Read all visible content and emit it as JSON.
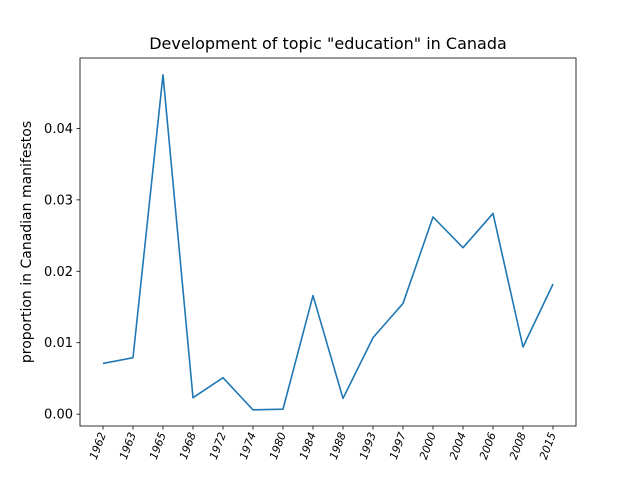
{
  "chart_data": {
    "type": "line",
    "title": "Development of topic \"education\" in Canada",
    "xlabel": "",
    "ylabel": "proportion in Canadian manifestos",
    "categories": [
      "1962",
      "1963",
      "1965",
      "1968",
      "1972",
      "1974",
      "1980",
      "1984",
      "1988",
      "1993",
      "1997",
      "2000",
      "2004",
      "2006",
      "2008",
      "2015"
    ],
    "series": [
      {
        "values": [
          0.0071,
          0.0079,
          0.0475,
          0.0023,
          0.0051,
          0.0006,
          0.0007,
          0.0166,
          0.0022,
          0.0107,
          0.0155,
          0.0276,
          0.0233,
          0.0281,
          0.0094,
          0.0182
        ],
        "color": "#1f77b4"
      }
    ],
    "yticks": [
      "0.00",
      "0.01",
      "0.02",
      "0.03",
      "0.04"
    ],
    "ytick_values": [
      0,
      0.01,
      0.02,
      0.03,
      0.04
    ],
    "ylim": [
      -0.00166,
      0.04986
    ],
    "grid": false,
    "legend": "none"
  }
}
